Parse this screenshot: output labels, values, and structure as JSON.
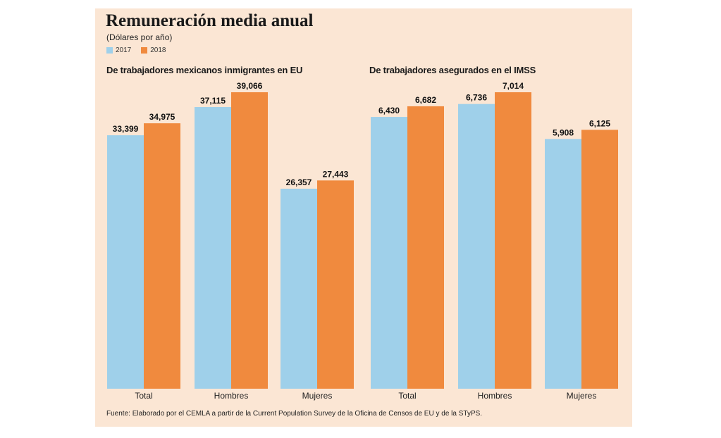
{
  "title": "Remuneración media anual",
  "subtitle": "(Dólares por año)",
  "legend": [
    {
      "label": "2017",
      "color": "#9fd0ea"
    },
    {
      "label": "2018",
      "color": "#f08a3e"
    }
  ],
  "colors": {
    "bar_2017": "#9fd0ea",
    "bar_2018": "#f08a3e",
    "panel": "#fbe6d4"
  },
  "source": "Fuente: Elaborado por el CEMLA a partir de la Current Population Survey de la Oficina de Censos de EU y de la STyPS.",
  "chart_data": [
    {
      "type": "bar",
      "title": "De trabajadores mexicanos inmigrantes en EU",
      "categories": [
        "Total",
        "Hombres",
        "Mujeres"
      ],
      "series": [
        {
          "name": "2017",
          "values": [
            33399,
            37115,
            26357
          ],
          "labels": [
            "33,399",
            "37,115",
            "26,357"
          ]
        },
        {
          "name": "2018",
          "values": [
            34975,
            39066,
            27443
          ],
          "labels": [
            "34,975",
            "39,066",
            "27,443"
          ]
        }
      ],
      "ylim": [
        0,
        39066
      ]
    },
    {
      "type": "bar",
      "title": "De trabajadores asegurados en el IMSS",
      "categories": [
        "Total",
        "Hombres",
        "Mujeres"
      ],
      "series": [
        {
          "name": "2017",
          "values": [
            6430,
            6736,
            5908
          ],
          "labels": [
            "6,430",
            "6,736",
            "5,908"
          ]
        },
        {
          "name": "2018",
          "values": [
            6682,
            7014,
            6125
          ],
          "labels": [
            "6,682",
            "7,014",
            "6,125"
          ]
        }
      ],
      "ylim": [
        0,
        7014
      ]
    }
  ]
}
